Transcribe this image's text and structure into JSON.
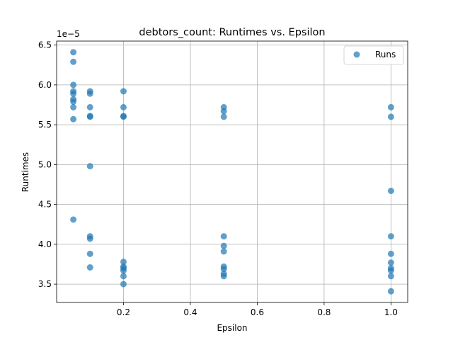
{
  "chart_data": {
    "type": "scatter",
    "title": "debtors_count: Runtimes vs. Epsilon",
    "xlabel": "Epsilon",
    "ylabel": "Runtimes",
    "offset_label": "1e−5",
    "xlim": [
      0.0,
      1.05
    ],
    "ylim": [
      3.27,
      6.55
    ],
    "x_ticks": [
      {
        "value": 0.2,
        "label": "0.2"
      },
      {
        "value": 0.4,
        "label": "0.4"
      },
      {
        "value": 0.6,
        "label": "0.6"
      },
      {
        "value": 0.8,
        "label": "0.8"
      },
      {
        "value": 1.0,
        "label": "1.0"
      }
    ],
    "y_ticks": [
      {
        "value": 3.5,
        "label": "3.5"
      },
      {
        "value": 4.0,
        "label": "4.0"
      },
      {
        "value": 4.5,
        "label": "4.5"
      },
      {
        "value": 5.0,
        "label": "5.0"
      },
      {
        "value": 5.5,
        "label": "5.5"
      },
      {
        "value": 6.0,
        "label": "6.0"
      },
      {
        "value": 6.5,
        "label": "6.5"
      }
    ],
    "grid": true,
    "legend_position": "top-right",
    "series": [
      {
        "name": "Runs",
        "color": "#1f77b4",
        "points": [
          [
            0.05,
            6.41
          ],
          [
            0.05,
            6.29
          ],
          [
            0.05,
            6.0
          ],
          [
            0.05,
            5.92
          ],
          [
            0.05,
            5.89
          ],
          [
            0.05,
            5.82
          ],
          [
            0.05,
            5.79
          ],
          [
            0.05,
            5.72
          ],
          [
            0.05,
            5.57
          ],
          [
            0.05,
            4.31
          ],
          [
            0.1,
            5.92
          ],
          [
            0.1,
            5.89
          ],
          [
            0.1,
            5.72
          ],
          [
            0.1,
            5.61
          ],
          [
            0.1,
            5.6
          ],
          [
            0.1,
            4.98
          ],
          [
            0.1,
            4.1
          ],
          [
            0.1,
            4.07
          ],
          [
            0.1,
            3.88
          ],
          [
            0.1,
            3.71
          ],
          [
            0.2,
            5.92
          ],
          [
            0.2,
            5.72
          ],
          [
            0.2,
            5.61
          ],
          [
            0.2,
            5.6
          ],
          [
            0.2,
            3.78
          ],
          [
            0.2,
            3.72
          ],
          [
            0.2,
            3.7
          ],
          [
            0.2,
            3.67
          ],
          [
            0.2,
            3.6
          ],
          [
            0.2,
            3.5
          ],
          [
            0.5,
            5.72
          ],
          [
            0.5,
            5.67
          ],
          [
            0.5,
            5.6
          ],
          [
            0.5,
            4.1
          ],
          [
            0.5,
            3.98
          ],
          [
            0.5,
            3.91
          ],
          [
            0.5,
            3.72
          ],
          [
            0.5,
            3.69
          ],
          [
            0.5,
            3.63
          ],
          [
            0.5,
            3.6
          ],
          [
            1.0,
            5.72
          ],
          [
            1.0,
            5.6
          ],
          [
            1.0,
            4.67
          ],
          [
            1.0,
            4.1
          ],
          [
            1.0,
            3.88
          ],
          [
            1.0,
            3.77
          ],
          [
            1.0,
            3.7
          ],
          [
            1.0,
            3.67
          ],
          [
            1.0,
            3.6
          ],
          [
            1.0,
            3.41
          ]
        ]
      }
    ]
  }
}
